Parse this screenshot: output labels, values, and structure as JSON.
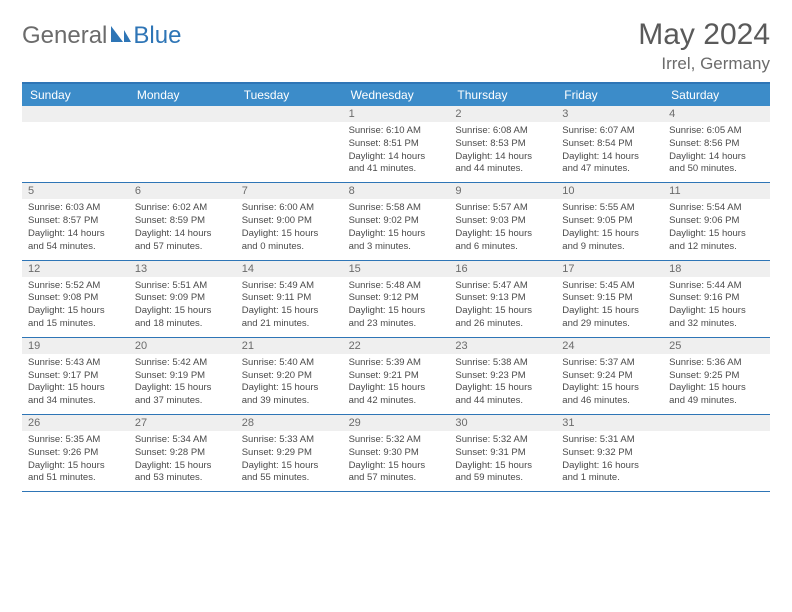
{
  "logo": {
    "textA": "General",
    "textB": "Blue"
  },
  "title": "May 2024",
  "location": "Irrel, Germany",
  "colors": {
    "accent": "#3c8cc9",
    "border": "#2e75b6",
    "daynum_bg": "#efefef",
    "text_muted": "#6b6b6b",
    "text_body": "#4a4a4a"
  },
  "day_headers": [
    "Sunday",
    "Monday",
    "Tuesday",
    "Wednesday",
    "Thursday",
    "Friday",
    "Saturday"
  ],
  "weeks": [
    [
      {
        "n": "",
        "lines": []
      },
      {
        "n": "",
        "lines": []
      },
      {
        "n": "",
        "lines": []
      },
      {
        "n": "1",
        "lines": [
          "Sunrise: 6:10 AM",
          "Sunset: 8:51 PM",
          "Daylight: 14 hours",
          "and 41 minutes."
        ]
      },
      {
        "n": "2",
        "lines": [
          "Sunrise: 6:08 AM",
          "Sunset: 8:53 PM",
          "Daylight: 14 hours",
          "and 44 minutes."
        ]
      },
      {
        "n": "3",
        "lines": [
          "Sunrise: 6:07 AM",
          "Sunset: 8:54 PM",
          "Daylight: 14 hours",
          "and 47 minutes."
        ]
      },
      {
        "n": "4",
        "lines": [
          "Sunrise: 6:05 AM",
          "Sunset: 8:56 PM",
          "Daylight: 14 hours",
          "and 50 minutes."
        ]
      }
    ],
    [
      {
        "n": "5",
        "lines": [
          "Sunrise: 6:03 AM",
          "Sunset: 8:57 PM",
          "Daylight: 14 hours",
          "and 54 minutes."
        ]
      },
      {
        "n": "6",
        "lines": [
          "Sunrise: 6:02 AM",
          "Sunset: 8:59 PM",
          "Daylight: 14 hours",
          "and 57 minutes."
        ]
      },
      {
        "n": "7",
        "lines": [
          "Sunrise: 6:00 AM",
          "Sunset: 9:00 PM",
          "Daylight: 15 hours",
          "and 0 minutes."
        ]
      },
      {
        "n": "8",
        "lines": [
          "Sunrise: 5:58 AM",
          "Sunset: 9:02 PM",
          "Daylight: 15 hours",
          "and 3 minutes."
        ]
      },
      {
        "n": "9",
        "lines": [
          "Sunrise: 5:57 AM",
          "Sunset: 9:03 PM",
          "Daylight: 15 hours",
          "and 6 minutes."
        ]
      },
      {
        "n": "10",
        "lines": [
          "Sunrise: 5:55 AM",
          "Sunset: 9:05 PM",
          "Daylight: 15 hours",
          "and 9 minutes."
        ]
      },
      {
        "n": "11",
        "lines": [
          "Sunrise: 5:54 AM",
          "Sunset: 9:06 PM",
          "Daylight: 15 hours",
          "and 12 minutes."
        ]
      }
    ],
    [
      {
        "n": "12",
        "lines": [
          "Sunrise: 5:52 AM",
          "Sunset: 9:08 PM",
          "Daylight: 15 hours",
          "and 15 minutes."
        ]
      },
      {
        "n": "13",
        "lines": [
          "Sunrise: 5:51 AM",
          "Sunset: 9:09 PM",
          "Daylight: 15 hours",
          "and 18 minutes."
        ]
      },
      {
        "n": "14",
        "lines": [
          "Sunrise: 5:49 AM",
          "Sunset: 9:11 PM",
          "Daylight: 15 hours",
          "and 21 minutes."
        ]
      },
      {
        "n": "15",
        "lines": [
          "Sunrise: 5:48 AM",
          "Sunset: 9:12 PM",
          "Daylight: 15 hours",
          "and 23 minutes."
        ]
      },
      {
        "n": "16",
        "lines": [
          "Sunrise: 5:47 AM",
          "Sunset: 9:13 PM",
          "Daylight: 15 hours",
          "and 26 minutes."
        ]
      },
      {
        "n": "17",
        "lines": [
          "Sunrise: 5:45 AM",
          "Sunset: 9:15 PM",
          "Daylight: 15 hours",
          "and 29 minutes."
        ]
      },
      {
        "n": "18",
        "lines": [
          "Sunrise: 5:44 AM",
          "Sunset: 9:16 PM",
          "Daylight: 15 hours",
          "and 32 minutes."
        ]
      }
    ],
    [
      {
        "n": "19",
        "lines": [
          "Sunrise: 5:43 AM",
          "Sunset: 9:17 PM",
          "Daylight: 15 hours",
          "and 34 minutes."
        ]
      },
      {
        "n": "20",
        "lines": [
          "Sunrise: 5:42 AM",
          "Sunset: 9:19 PM",
          "Daylight: 15 hours",
          "and 37 minutes."
        ]
      },
      {
        "n": "21",
        "lines": [
          "Sunrise: 5:40 AM",
          "Sunset: 9:20 PM",
          "Daylight: 15 hours",
          "and 39 minutes."
        ]
      },
      {
        "n": "22",
        "lines": [
          "Sunrise: 5:39 AM",
          "Sunset: 9:21 PM",
          "Daylight: 15 hours",
          "and 42 minutes."
        ]
      },
      {
        "n": "23",
        "lines": [
          "Sunrise: 5:38 AM",
          "Sunset: 9:23 PM",
          "Daylight: 15 hours",
          "and 44 minutes."
        ]
      },
      {
        "n": "24",
        "lines": [
          "Sunrise: 5:37 AM",
          "Sunset: 9:24 PM",
          "Daylight: 15 hours",
          "and 46 minutes."
        ]
      },
      {
        "n": "25",
        "lines": [
          "Sunrise: 5:36 AM",
          "Sunset: 9:25 PM",
          "Daylight: 15 hours",
          "and 49 minutes."
        ]
      }
    ],
    [
      {
        "n": "26",
        "lines": [
          "Sunrise: 5:35 AM",
          "Sunset: 9:26 PM",
          "Daylight: 15 hours",
          "and 51 minutes."
        ]
      },
      {
        "n": "27",
        "lines": [
          "Sunrise: 5:34 AM",
          "Sunset: 9:28 PM",
          "Daylight: 15 hours",
          "and 53 minutes."
        ]
      },
      {
        "n": "28",
        "lines": [
          "Sunrise: 5:33 AM",
          "Sunset: 9:29 PM",
          "Daylight: 15 hours",
          "and 55 minutes."
        ]
      },
      {
        "n": "29",
        "lines": [
          "Sunrise: 5:32 AM",
          "Sunset: 9:30 PM",
          "Daylight: 15 hours",
          "and 57 minutes."
        ]
      },
      {
        "n": "30",
        "lines": [
          "Sunrise: 5:32 AM",
          "Sunset: 9:31 PM",
          "Daylight: 15 hours",
          "and 59 minutes."
        ]
      },
      {
        "n": "31",
        "lines": [
          "Sunrise: 5:31 AM",
          "Sunset: 9:32 PM",
          "Daylight: 16 hours",
          "and 1 minute."
        ]
      },
      {
        "n": "",
        "lines": []
      }
    ]
  ]
}
